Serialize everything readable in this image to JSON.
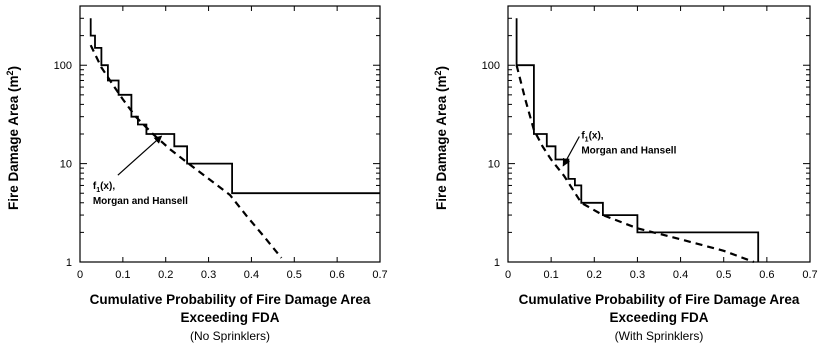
{
  "chart_data": [
    {
      "type": "line",
      "scale": {
        "x": "linear",
        "y": "log"
      },
      "xlim": [
        0,
        0.7
      ],
      "ylim": [
        1,
        400
      ],
      "x_ticks": [
        0,
        0.1,
        0.2,
        0.3,
        0.4,
        0.5,
        0.6,
        0.7
      ],
      "x_tick_labels": [
        "0",
        "0.1",
        "0.2",
        "0.3",
        "0.4",
        "0.5",
        "0.6",
        "0.7"
      ],
      "y_ticks": [
        1,
        10,
        100
      ],
      "y_tick_labels": [
        "1",
        "10",
        "100"
      ],
      "xlabel_line1": "Cumulative Probability of Fire Damage Area",
      "xlabel_line2": "Exceeding FDA",
      "subtitle": "(No Sprinklers)",
      "ylabel": "Fire Damage Area (m",
      "ylabel_sup": "2",
      "ylabel_end": ")",
      "annotation": {
        "line1": "f",
        "sub": "1",
        "line1_end": "(x),",
        "line2": "Morgan and Hansell",
        "text_at": [
          0.03,
          5.5
        ],
        "arrow_to": [
          0.19,
          19
        ]
      },
      "series": [
        {
          "style": "step-solid",
          "x": [
            0.025,
            0.025,
            0.035,
            0.035,
            0.05,
            0.05,
            0.065,
            0.065,
            0.09,
            0.09,
            0.12,
            0.12,
            0.135,
            0.135,
            0.155,
            0.155,
            0.18,
            0.18,
            0.22,
            0.22,
            0.25,
            0.25,
            0.28,
            0.28,
            0.355,
            0.355,
            0.7
          ],
          "y": [
            300,
            200,
            200,
            150,
            150,
            100,
            100,
            70,
            70,
            50,
            50,
            30,
            30,
            25,
            25,
            20,
            20,
            20,
            20,
            15,
            15,
            10,
            10,
            10,
            10,
            5,
            5
          ]
        },
        {
          "style": "dashed",
          "x": [
            0.025,
            0.05,
            0.075,
            0.1,
            0.13,
            0.17,
            0.21,
            0.26,
            0.31,
            0.35,
            0.39,
            0.43,
            0.47
          ],
          "y": [
            160,
            95,
            65,
            45,
            30,
            20,
            14,
            9.5,
            6.5,
            4.8,
            2.9,
            1.8,
            1.1
          ]
        }
      ]
    },
    {
      "type": "line",
      "scale": {
        "x": "linear",
        "y": "log"
      },
      "xlim": [
        0,
        0.7
      ],
      "ylim": [
        1,
        400
      ],
      "x_ticks": [
        0,
        0.1,
        0.2,
        0.3,
        0.4,
        0.5,
        0.6,
        0.7
      ],
      "x_tick_labels": [
        "0",
        "0.1",
        "0.2",
        "0.3",
        "0.4",
        "0.5",
        "0.6",
        "0.7"
      ],
      "y_ticks": [
        1,
        10,
        100
      ],
      "y_tick_labels": [
        "1",
        "10",
        "100"
      ],
      "xlabel_line1": "Cumulative Probability of Fire Damage Area",
      "xlabel_line2": "Exceeding FDA",
      "subtitle": "(With Sprinklers)",
      "ylabel": "Fire Damage Area (m",
      "ylabel_sup": "2",
      "ylabel_end": ")",
      "annotation": {
        "line1": "f",
        "sub": "1",
        "line1_end": "(x),",
        "line2": "Morgan and Hansell",
        "text_at": [
          0.17,
          18
        ],
        "arrow_to": [
          0.128,
          9.5
        ]
      },
      "series": [
        {
          "style": "step-solid",
          "x": [
            0.02,
            0.02,
            0.06,
            0.06,
            0.09,
            0.09,
            0.11,
            0.11,
            0.14,
            0.14,
            0.155,
            0.155,
            0.17,
            0.17,
            0.22,
            0.22,
            0.3,
            0.3,
            0.58,
            0.58
          ],
          "y": [
            300,
            100,
            100,
            20,
            20,
            15,
            15,
            11,
            11,
            7,
            7,
            6,
            6,
            4,
            4,
            3,
            3,
            2,
            2,
            1
          ]
        },
        {
          "style": "dashed",
          "x": [
            0.02,
            0.04,
            0.06,
            0.08,
            0.1,
            0.13,
            0.17,
            0.22,
            0.3,
            0.4,
            0.5,
            0.57
          ],
          "y": [
            100,
            45,
            22,
            15,
            11,
            7.5,
            4,
            3,
            2.2,
            1.7,
            1.3,
            1.0
          ]
        }
      ]
    }
  ]
}
